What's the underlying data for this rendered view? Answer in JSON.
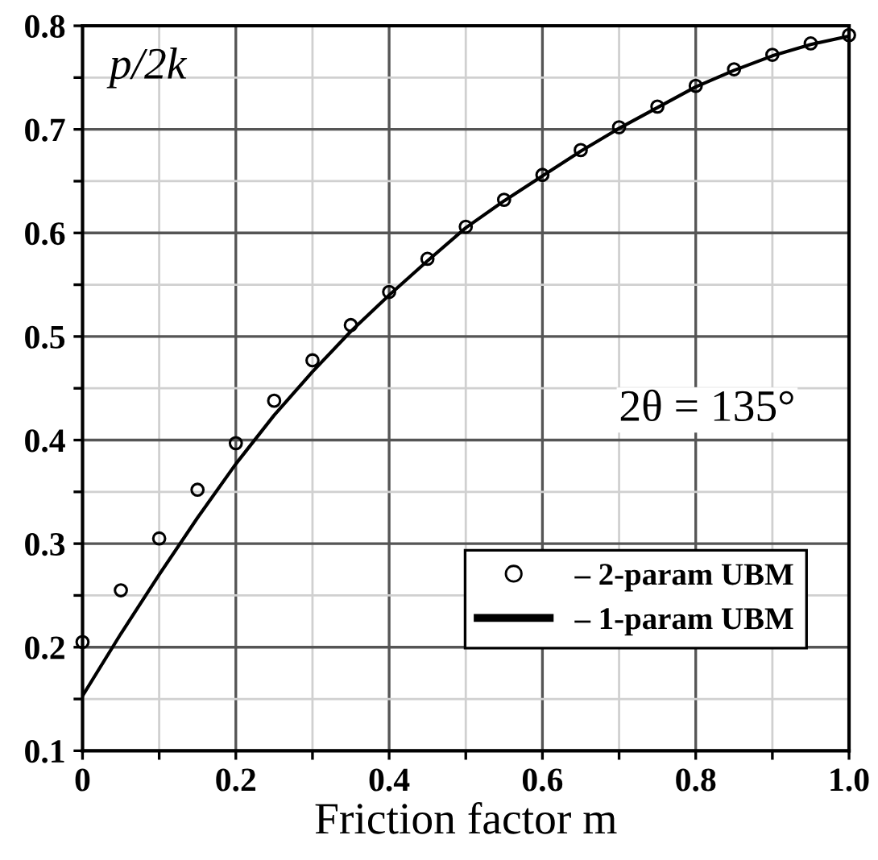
{
  "chart_data": {
    "type": "line",
    "xlabel": "Friction factor m",
    "ylabel": "p/2k",
    "x": [
      0,
      0.05,
      0.1,
      0.15,
      0.2,
      0.25,
      0.3,
      0.35,
      0.4,
      0.45,
      0.5,
      0.55,
      0.6,
      0.65,
      0.7,
      0.75,
      0.8,
      0.85,
      0.9,
      0.95,
      1.0
    ],
    "series": [
      {
        "name": "– 2-param UBM",
        "type": "scatter",
        "marker": "circle",
        "color": "#000000",
        "values": [
          0.205,
          0.255,
          0.305,
          0.352,
          0.397,
          0.438,
          0.477,
          0.511,
          0.543,
          0.575,
          0.606,
          0.632,
          0.656,
          0.68,
          0.702,
          0.722,
          0.742,
          0.758,
          0.772,
          0.783,
          0.791
        ]
      },
      {
        "name": "– 1-param UBM",
        "line_style": "solid",
        "color": "#000000",
        "values": [
          0.153,
          0.213,
          0.27,
          0.325,
          0.377,
          0.424,
          0.466,
          0.505,
          0.54,
          0.573,
          0.605,
          0.631,
          0.655,
          0.679,
          0.701,
          0.721,
          0.741,
          0.757,
          0.771,
          0.782,
          0.79
        ]
      }
    ],
    "xlim": [
      0,
      1.0
    ],
    "ylim": [
      0.1,
      0.8
    ],
    "xticks": [
      0,
      {
        "value": 0.1,
        "label": null
      },
      0.2,
      {
        "value": 0.3,
        "label": null
      },
      0.4,
      {
        "value": 0.5,
        "label": null
      },
      0.6,
      {
        "value": 0.7,
        "label": null
      },
      0.8,
      {
        "value": 0.9,
        "label": null
      },
      {
        "value": 1.0,
        "label": "1.0"
      }
    ],
    "yticks": [
      0.1,
      {
        "value": 0.15,
        "label": null
      },
      0.2,
      {
        "value": 0.25,
        "label": null
      },
      0.3,
      {
        "value": 0.35,
        "label": null
      },
      0.4,
      {
        "value": 0.45,
        "label": null
      },
      0.5,
      {
        "value": 0.55,
        "label": null
      },
      0.6,
      {
        "value": 0.65,
        "label": null
      },
      0.7,
      {
        "value": 0.75,
        "label": null
      },
      0.8
    ],
    "annotations": [
      "2θ = 135°"
    ],
    "grid": true,
    "legend": "bottom right"
  }
}
